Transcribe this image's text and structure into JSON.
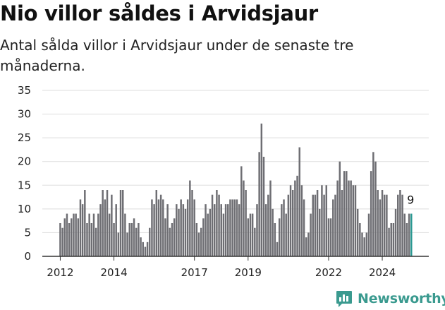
{
  "title": "Nio villor såldes i Arvidsjaur",
  "subtitle": "Antal sålda villor i Arvidsjaur under de senaste tre månaderna.",
  "brand": "Newsworthy",
  "colors": {
    "bar": "#6e6e73",
    "highlight": "#2b9a93",
    "grid": "#dddddd",
    "axis": "#333333",
    "brand": "#3a9a8f"
  },
  "chart_data": {
    "type": "bar",
    "title": "",
    "xlabel": "",
    "ylabel": "",
    "ylim": [
      0,
      35
    ],
    "yticks": [
      0,
      5,
      10,
      15,
      20,
      25,
      30,
      35
    ],
    "xticks": [
      "2012",
      "2014",
      "2017",
      "2019",
      "2022",
      "2024"
    ],
    "x_start": "2012-01",
    "grid": true,
    "highlight_label": "9",
    "series": [
      {
        "values": [
          7,
          6,
          8,
          9,
          7,
          8,
          9,
          9,
          8,
          12,
          11,
          14,
          7,
          9,
          7,
          9,
          6,
          9,
          11,
          14,
          12,
          14,
          9,
          13,
          7,
          11,
          5,
          14,
          14,
          9,
          5,
          7,
          7,
          8,
          6,
          7,
          4,
          3,
          2,
          3,
          6,
          12,
          11,
          14,
          12,
          13,
          12,
          8,
          11,
          6,
          7,
          8,
          11,
          10,
          12,
          11,
          10,
          12,
          16,
          14,
          12,
          7,
          5,
          6,
          8,
          11,
          9,
          10,
          13,
          11,
          14,
          13,
          11,
          9,
          11,
          11,
          12,
          12,
          12,
          12,
          11,
          19,
          16,
          14,
          8,
          9,
          9,
          6,
          11,
          22,
          28,
          21,
          11,
          13,
          16,
          10,
          7,
          3,
          8,
          11,
          12,
          9,
          13,
          15,
          14,
          16,
          17,
          23,
          15,
          12,
          4,
          5,
          9,
          13,
          13,
          14,
          10,
          15,
          13,
          15,
          8,
          8,
          12,
          13,
          16,
          20,
          14,
          18,
          18,
          16,
          16,
          15,
          15,
          10,
          7,
          5,
          4,
          5,
          9,
          18,
          22,
          20,
          14,
          12,
          14,
          13,
          13,
          6,
          7,
          7,
          10,
          13,
          14,
          13,
          9,
          7,
          9,
          9
        ]
      }
    ]
  }
}
